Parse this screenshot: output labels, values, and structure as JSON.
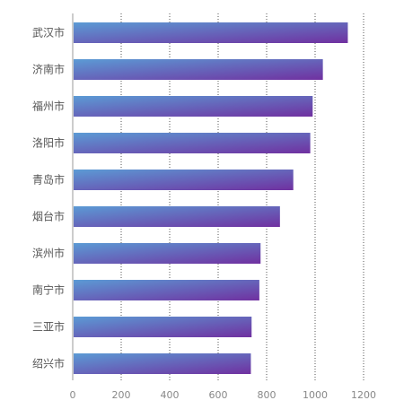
{
  "chart_data": {
    "type": "bar",
    "orientation": "horizontal",
    "categories": [
      "武汉市",
      "济南市",
      "福州市",
      "洛阳市",
      "青岛市",
      "烟台市",
      "滨州市",
      "南宁市",
      "三亚市",
      "绍兴市"
    ],
    "values": [
      1135,
      1032,
      990,
      980,
      910,
      855,
      775,
      770,
      738,
      735
    ],
    "x_ticks": [
      "0",
      "200",
      "400",
      "600",
      "800",
      "1000",
      "1200"
    ],
    "xlim": [
      0,
      1200
    ],
    "grid": "vertical dotted",
    "legend": "none",
    "title": "",
    "xlabel": "",
    "ylabel": "",
    "colors": {
      "bar_start": "#5b9bd5",
      "bar_end": "#7030a0",
      "axis": "#999999",
      "grid": "#555555"
    }
  }
}
